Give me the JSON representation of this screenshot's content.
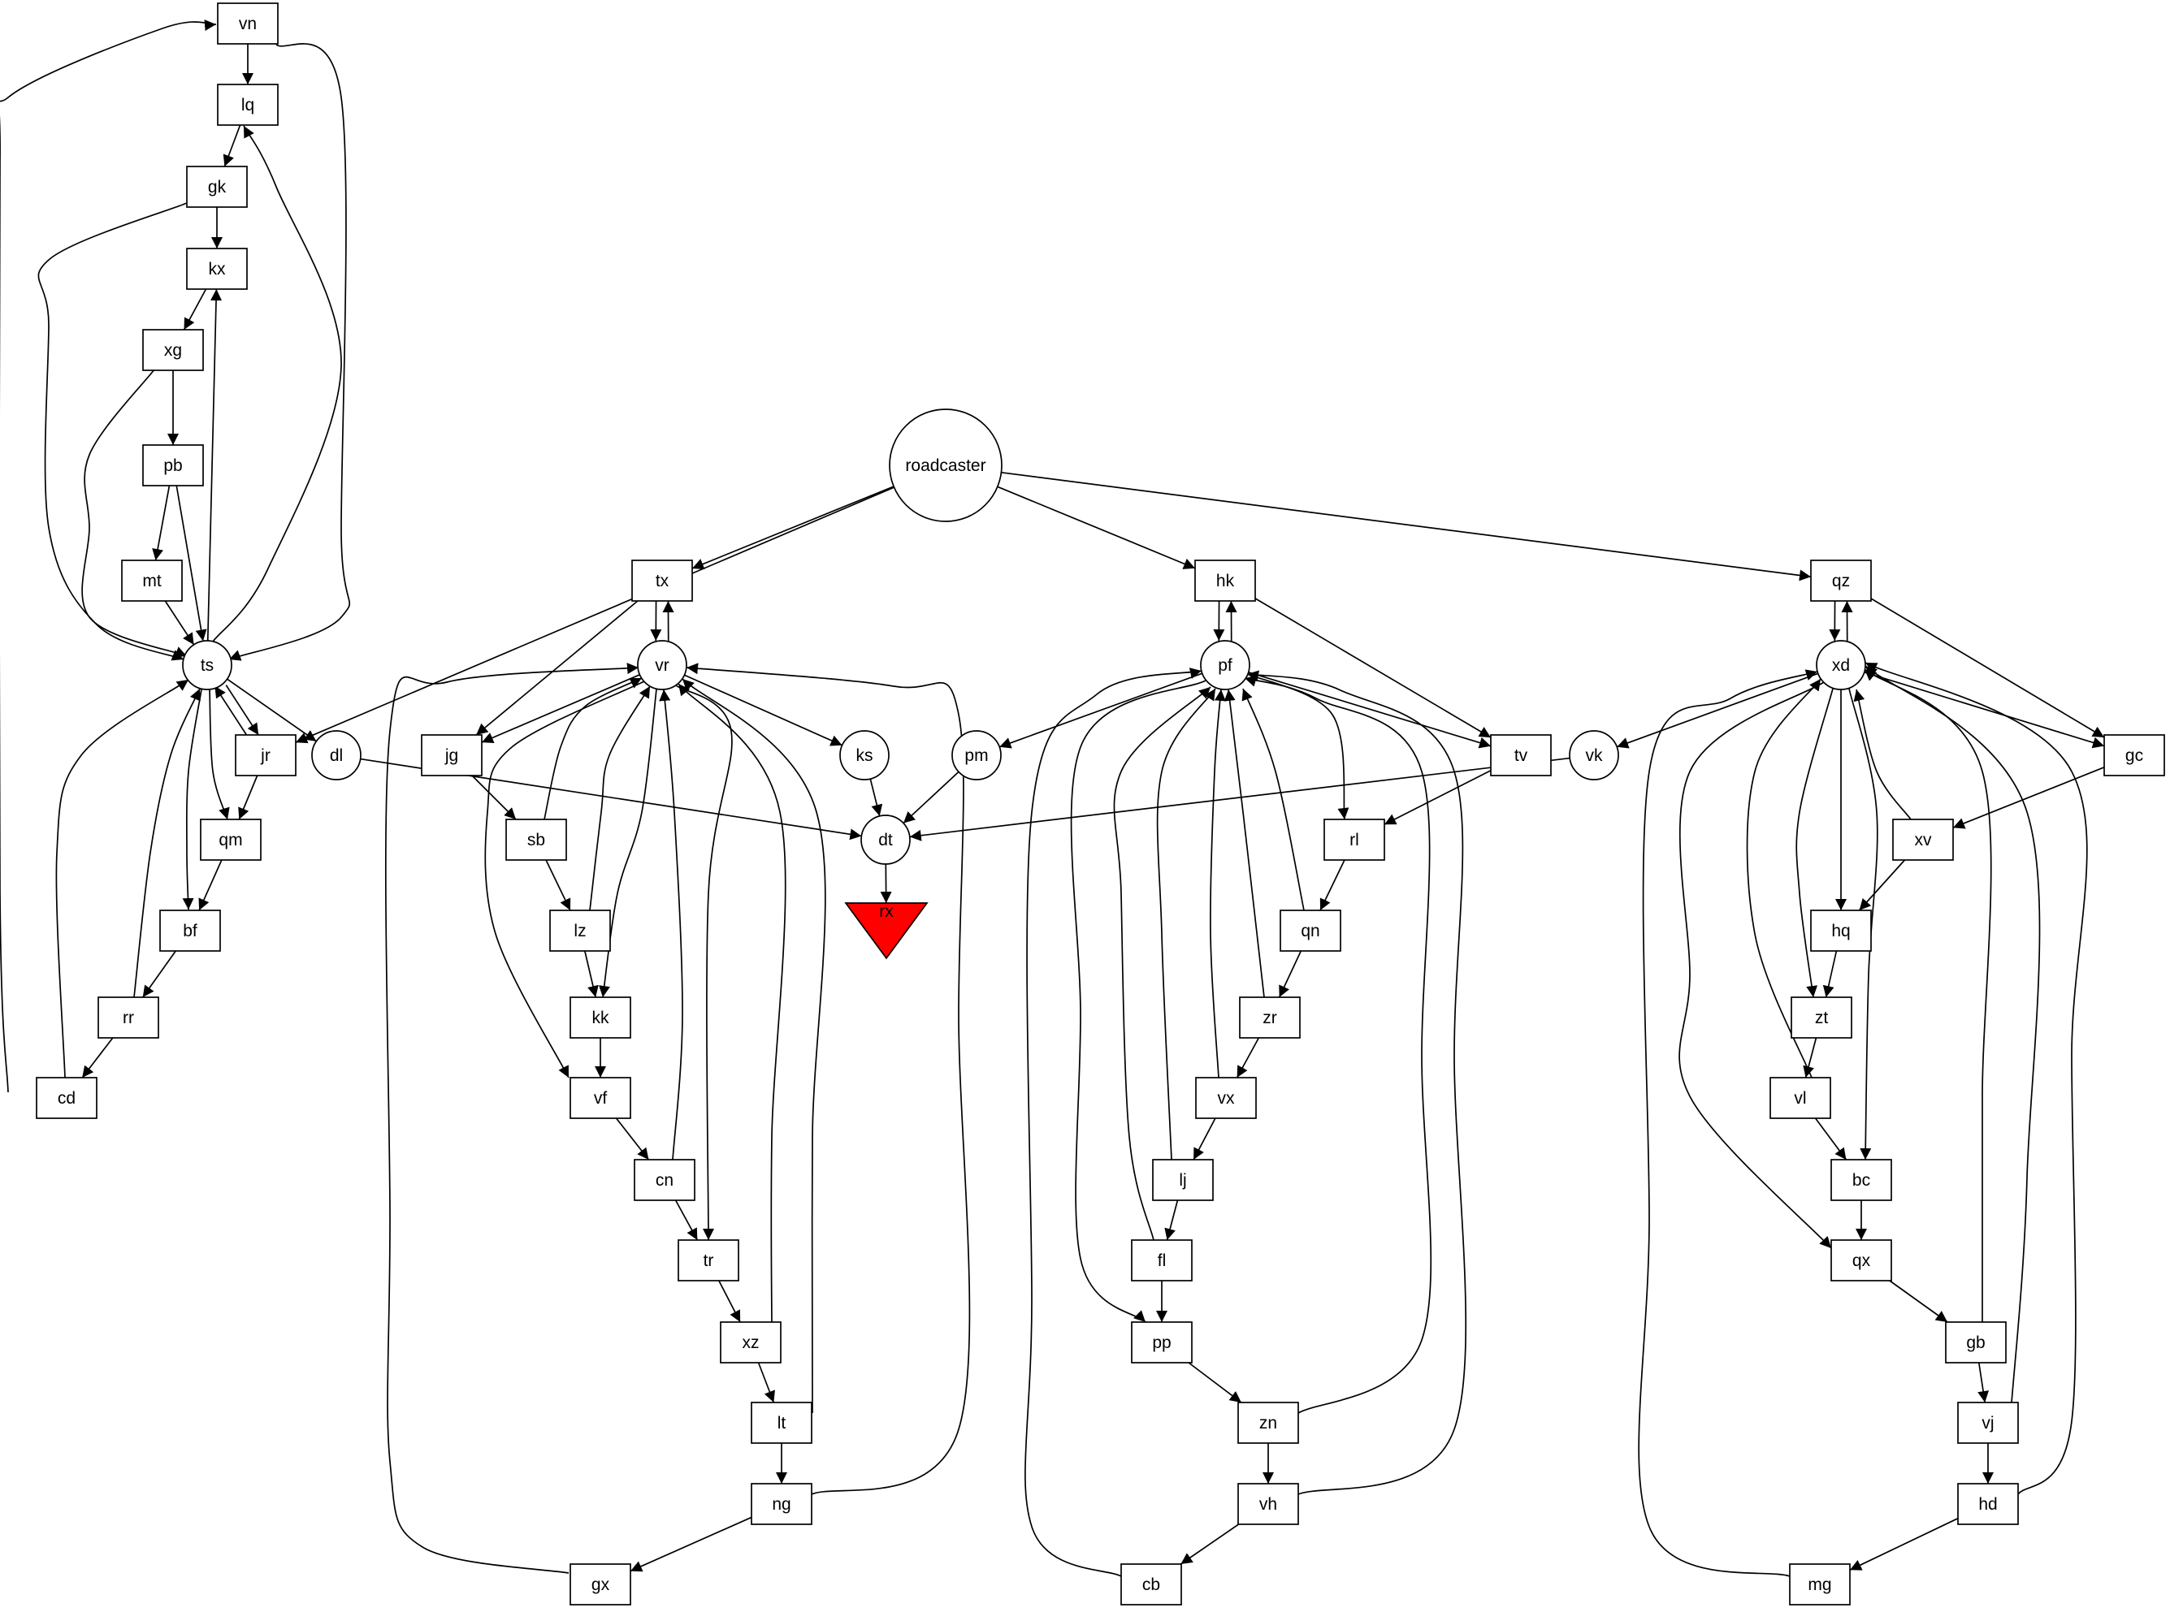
{
  "diagram": {
    "type": "directed-graph",
    "nodes": [
      {
        "id": "vn",
        "label": "vn",
        "shape": "box"
      },
      {
        "id": "lq",
        "label": "lq",
        "shape": "box"
      },
      {
        "id": "gk",
        "label": "gk",
        "shape": "box"
      },
      {
        "id": "kx",
        "label": "kx",
        "shape": "box"
      },
      {
        "id": "xg",
        "label": "xg",
        "shape": "box"
      },
      {
        "id": "pb",
        "label": "pb",
        "shape": "box"
      },
      {
        "id": "mt",
        "label": "mt",
        "shape": "box"
      },
      {
        "id": "ts",
        "label": "ts",
        "shape": "circle"
      },
      {
        "id": "jr",
        "label": "jr",
        "shape": "box"
      },
      {
        "id": "dl",
        "label": "dl",
        "shape": "circle"
      },
      {
        "id": "qm",
        "label": "qm",
        "shape": "box"
      },
      {
        "id": "bf",
        "label": "bf",
        "shape": "box"
      },
      {
        "id": "rr",
        "label": "rr",
        "shape": "box"
      },
      {
        "id": "cd",
        "label": "cd",
        "shape": "box"
      },
      {
        "id": "roadcaster",
        "label": "roadcaster",
        "shape": "circle"
      },
      {
        "id": "tx",
        "label": "tx",
        "shape": "box"
      },
      {
        "id": "vr",
        "label": "vr",
        "shape": "circle"
      },
      {
        "id": "jg",
        "label": "jg",
        "shape": "box"
      },
      {
        "id": "sb",
        "label": "sb",
        "shape": "box"
      },
      {
        "id": "lz",
        "label": "lz",
        "shape": "box"
      },
      {
        "id": "kk",
        "label": "kk",
        "shape": "box"
      },
      {
        "id": "vf",
        "label": "vf",
        "shape": "box"
      },
      {
        "id": "cn",
        "label": "cn",
        "shape": "box"
      },
      {
        "id": "tr",
        "label": "tr",
        "shape": "box"
      },
      {
        "id": "xz",
        "label": "xz",
        "shape": "box"
      },
      {
        "id": "lt",
        "label": "lt",
        "shape": "box"
      },
      {
        "id": "ng",
        "label": "ng",
        "shape": "box"
      },
      {
        "id": "gx",
        "label": "gx",
        "shape": "box"
      },
      {
        "id": "ks",
        "label": "ks",
        "shape": "circle"
      },
      {
        "id": "pm",
        "label": "pm",
        "shape": "circle"
      },
      {
        "id": "dt",
        "label": "dt",
        "shape": "circle"
      },
      {
        "id": "rx",
        "label": "rx",
        "shape": "invtriangle",
        "fill": "#ff0000"
      },
      {
        "id": "hk",
        "label": "hk",
        "shape": "box"
      },
      {
        "id": "pf",
        "label": "pf",
        "shape": "circle"
      },
      {
        "id": "tv",
        "label": "tv",
        "shape": "box"
      },
      {
        "id": "rl",
        "label": "rl",
        "shape": "box"
      },
      {
        "id": "qn",
        "label": "qn",
        "shape": "box"
      },
      {
        "id": "zr",
        "label": "zr",
        "shape": "box"
      },
      {
        "id": "vx",
        "label": "vx",
        "shape": "box"
      },
      {
        "id": "lj",
        "label": "lj",
        "shape": "box"
      },
      {
        "id": "fl",
        "label": "fl",
        "shape": "box"
      },
      {
        "id": "pp",
        "label": "pp",
        "shape": "box"
      },
      {
        "id": "zn",
        "label": "zn",
        "shape": "box"
      },
      {
        "id": "vh",
        "label": "vh",
        "shape": "box"
      },
      {
        "id": "cb",
        "label": "cb",
        "shape": "box"
      },
      {
        "id": "qz",
        "label": "qz",
        "shape": "box"
      },
      {
        "id": "xd",
        "label": "xd",
        "shape": "circle"
      },
      {
        "id": "vk",
        "label": "vk",
        "shape": "circle"
      },
      {
        "id": "gc",
        "label": "gc",
        "shape": "box"
      },
      {
        "id": "xv",
        "label": "xv",
        "shape": "box"
      },
      {
        "id": "hq",
        "label": "hq",
        "shape": "box"
      },
      {
        "id": "zt",
        "label": "zt",
        "shape": "box"
      },
      {
        "id": "vl",
        "label": "vl",
        "shape": "box"
      },
      {
        "id": "bc",
        "label": "bc",
        "shape": "box"
      },
      {
        "id": "qx",
        "label": "qx",
        "shape": "box"
      },
      {
        "id": "gb",
        "label": "gb",
        "shape": "box"
      },
      {
        "id": "vj",
        "label": "vj",
        "shape": "box"
      },
      {
        "id": "hd",
        "label": "hd",
        "shape": "box"
      },
      {
        "id": "mg",
        "label": "mg",
        "shape": "box"
      }
    ],
    "edges": [
      {
        "from": "vn",
        "to": "lq"
      },
      {
        "from": "vn",
        "to": "ts"
      },
      {
        "from": "lq",
        "to": "gk"
      },
      {
        "from": "gk",
        "to": "kx"
      },
      {
        "from": "gk",
        "to": "ts"
      },
      {
        "from": "kx",
        "to": "xg"
      },
      {
        "from": "xg",
        "to": "pb"
      },
      {
        "from": "xg",
        "to": "ts"
      },
      {
        "from": "pb",
        "to": "mt"
      },
      {
        "from": "pb",
        "to": "ts"
      },
      {
        "from": "mt",
        "to": "ts"
      },
      {
        "from": "ts",
        "to": "lq"
      },
      {
        "from": "ts",
        "to": "kx"
      },
      {
        "from": "ts",
        "to": "jr"
      },
      {
        "from": "ts",
        "to": "dl"
      },
      {
        "from": "ts",
        "to": "qm"
      },
      {
        "from": "ts",
        "to": "bf"
      },
      {
        "from": "jr",
        "to": "ts"
      },
      {
        "from": "jr",
        "to": "qm"
      },
      {
        "from": "qm",
        "to": "bf"
      },
      {
        "from": "bf",
        "to": "rr"
      },
      {
        "from": "rr",
        "to": "cd"
      },
      {
        "from": "rr",
        "to": "ts"
      },
      {
        "from": "cd",
        "to": "ts"
      },
      {
        "from": "cd",
        "to": "vn"
      },
      {
        "from": "dl",
        "to": "dt"
      },
      {
        "from": "roadcaster",
        "to": "jr"
      },
      {
        "from": "roadcaster",
        "to": "tx"
      },
      {
        "from": "roadcaster",
        "to": "hk"
      },
      {
        "from": "roadcaster",
        "to": "qz"
      },
      {
        "from": "tx",
        "to": "vr"
      },
      {
        "from": "tx",
        "to": "jg"
      },
      {
        "from": "vr",
        "to": "tx"
      },
      {
        "from": "vr",
        "to": "jg"
      },
      {
        "from": "vr",
        "to": "ks"
      },
      {
        "from": "vr",
        "to": "kk"
      },
      {
        "from": "vr",
        "to": "vf"
      },
      {
        "from": "vr",
        "to": "tr"
      },
      {
        "from": "jg",
        "to": "sb"
      },
      {
        "from": "sb",
        "to": "vr"
      },
      {
        "from": "sb",
        "to": "lz"
      },
      {
        "from": "lz",
        "to": "vr"
      },
      {
        "from": "lz",
        "to": "kk"
      },
      {
        "from": "kk",
        "to": "vf"
      },
      {
        "from": "vf",
        "to": "cn"
      },
      {
        "from": "cn",
        "to": "vr"
      },
      {
        "from": "cn",
        "to": "tr"
      },
      {
        "from": "tr",
        "to": "xz"
      },
      {
        "from": "xz",
        "to": "vr"
      },
      {
        "from": "xz",
        "to": "lt"
      },
      {
        "from": "lt",
        "to": "vr"
      },
      {
        "from": "lt",
        "to": "ng"
      },
      {
        "from": "ng",
        "to": "vr"
      },
      {
        "from": "ng",
        "to": "gx"
      },
      {
        "from": "gx",
        "to": "vr"
      },
      {
        "from": "ks",
        "to": "dt"
      },
      {
        "from": "pm",
        "to": "dt"
      },
      {
        "from": "dt",
        "to": "rx"
      },
      {
        "from": "hk",
        "to": "pf"
      },
      {
        "from": "hk",
        "to": "tv"
      },
      {
        "from": "pf",
        "to": "hk"
      },
      {
        "from": "pf",
        "to": "pm"
      },
      {
        "from": "pf",
        "to": "tv"
      },
      {
        "from": "pf",
        "to": "rl"
      },
      {
        "from": "pf",
        "to": "pp"
      },
      {
        "from": "tv",
        "to": "rl"
      },
      {
        "from": "rl",
        "to": "qn"
      },
      {
        "from": "qn",
        "to": "pf"
      },
      {
        "from": "qn",
        "to": "zr"
      },
      {
        "from": "zr",
        "to": "pf"
      },
      {
        "from": "zr",
        "to": "vx"
      },
      {
        "from": "vx",
        "to": "pf"
      },
      {
        "from": "vx",
        "to": "lj"
      },
      {
        "from": "lj",
        "to": "pf"
      },
      {
        "from": "lj",
        "to": "fl"
      },
      {
        "from": "fl",
        "to": "pf"
      },
      {
        "from": "fl",
        "to": "pp"
      },
      {
        "from": "pp",
        "to": "zn"
      },
      {
        "from": "zn",
        "to": "pf"
      },
      {
        "from": "zn",
        "to": "vh"
      },
      {
        "from": "vh",
        "to": "pf"
      },
      {
        "from": "vh",
        "to": "cb"
      },
      {
        "from": "cb",
        "to": "pf"
      },
      {
        "from": "qz",
        "to": "xd"
      },
      {
        "from": "qz",
        "to": "gc"
      },
      {
        "from": "xd",
        "to": "qz"
      },
      {
        "from": "xd",
        "to": "vk"
      },
      {
        "from": "xd",
        "to": "gc"
      },
      {
        "from": "xd",
        "to": "hq"
      },
      {
        "from": "xd",
        "to": "zt"
      },
      {
        "from": "xd",
        "to": "bc"
      },
      {
        "from": "xd",
        "to": "qx"
      },
      {
        "from": "vk",
        "to": "dt"
      },
      {
        "from": "gc",
        "to": "xv"
      },
      {
        "from": "xv",
        "to": "xd"
      },
      {
        "from": "xv",
        "to": "hq"
      },
      {
        "from": "hq",
        "to": "zt"
      },
      {
        "from": "zt",
        "to": "vl"
      },
      {
        "from": "vl",
        "to": "xd"
      },
      {
        "from": "vl",
        "to": "bc"
      },
      {
        "from": "bc",
        "to": "qx"
      },
      {
        "from": "qx",
        "to": "gb"
      },
      {
        "from": "gb",
        "to": "xd"
      },
      {
        "from": "gb",
        "to": "vj"
      },
      {
        "from": "vj",
        "to": "xd"
      },
      {
        "from": "vj",
        "to": "hd"
      },
      {
        "from": "hd",
        "to": "xd"
      },
      {
        "from": "hd",
        "to": "mg"
      },
      {
        "from": "mg",
        "to": "xd"
      }
    ]
  }
}
